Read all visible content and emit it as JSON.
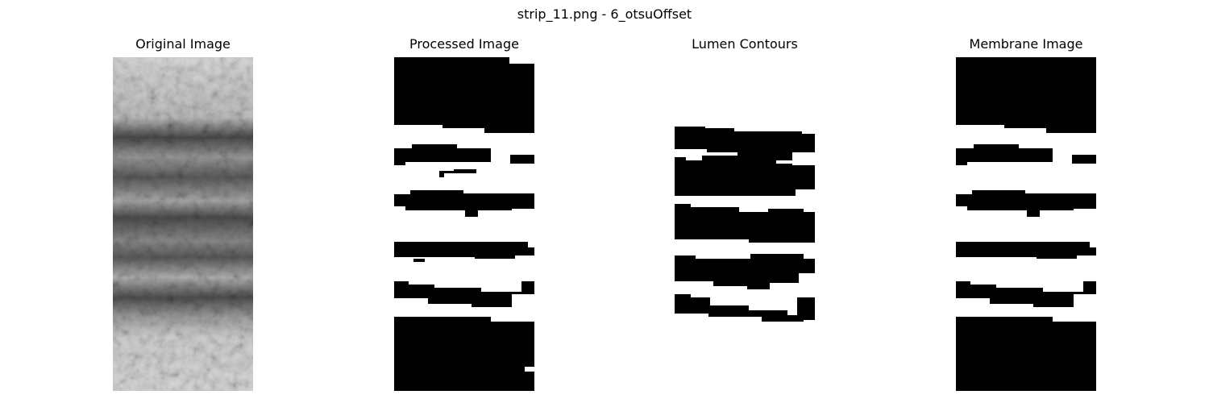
{
  "figure": {
    "suptitle": "strip_11.png - 6_otsuOffset"
  },
  "panels": [
    {
      "title": "Original Image",
      "content": "grayscale-texture"
    },
    {
      "title": "Processed Image",
      "content": "binary-mask"
    },
    {
      "title": "Lumen Contours",
      "content": "binary-contours"
    },
    {
      "title": "Membrane Image",
      "content": "binary-mask"
    }
  ],
  "colors": {
    "background": "#ffffff",
    "foreground": "#000000"
  }
}
